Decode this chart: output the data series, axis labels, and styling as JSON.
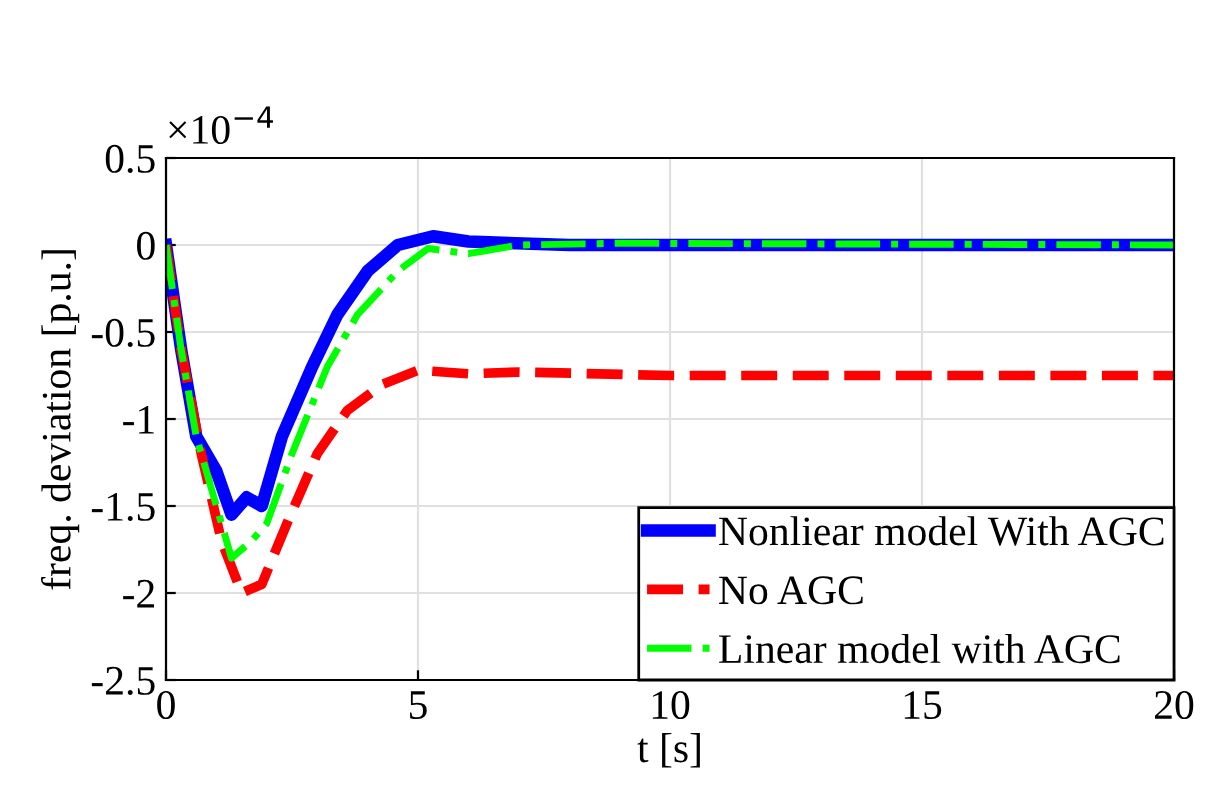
{
  "chart_data": {
    "type": "line",
    "xlabel": "t [s]",
    "ylabel": "freq. deviation [p.u.]",
    "annotations": [
      "×10$^{−4}$"
    ],
    "xlim": [
      0,
      20
    ],
    "xticks": [
      0,
      5,
      10,
      15,
      20
    ],
    "ylim": [
      -2.5,
      0.5
    ],
    "yticks": [
      -2.5,
      -2,
      -1.5,
      -1,
      -0.5,
      0,
      0.5
    ],
    "grid": true,
    "legend": "bottom right",
    "series": [
      {
        "name": "Nonliear model With AGC",
        "color": "#0000ff",
        "line_style": "solid",
        "x": [
          0,
          0.3,
          0.6,
          1.0,
          1.3,
          1.6,
          1.9,
          2.3,
          2.9,
          3.4,
          4.0,
          4.6,
          5.3,
          6.0,
          8.0,
          20
        ],
        "values": [
          0,
          -0.6,
          -1.1,
          -1.3,
          -1.55,
          -1.45,
          -1.5,
          -1.1,
          -0.7,
          -0.4,
          -0.15,
          0,
          0.05,
          0.02,
          0,
          0
        ]
      },
      {
        "name": "No AGC",
        "color": "#ff0000",
        "line_style": "dashed",
        "x": [
          0,
          0.3,
          0.7,
          1.1,
          1.5,
          1.9,
          2.4,
          3.0,
          3.6,
          4.3,
          5.0,
          6.0,
          7.0,
          10,
          20
        ],
        "values": [
          0,
          -0.6,
          -1.2,
          -1.7,
          -2.0,
          -1.95,
          -1.6,
          -1.2,
          -0.95,
          -0.8,
          -0.72,
          -0.74,
          -0.73,
          -0.75,
          -0.75
        ]
      },
      {
        "name": "Linear model with AGC",
        "color": "#00ff00",
        "line_style": "dashdot",
        "x": [
          0,
          0.3,
          0.6,
          1.0,
          1.3,
          1.7,
          2.0,
          2.5,
          3.2,
          3.8,
          4.6,
          5.2,
          6.0,
          7.0,
          9.0,
          20
        ],
        "values": [
          0,
          -0.6,
          -1.1,
          -1.5,
          -1.8,
          -1.7,
          -1.6,
          -1.2,
          -0.7,
          -0.4,
          -0.15,
          -0.02,
          -0.05,
          0,
          0.01,
          0
        ]
      }
    ]
  }
}
